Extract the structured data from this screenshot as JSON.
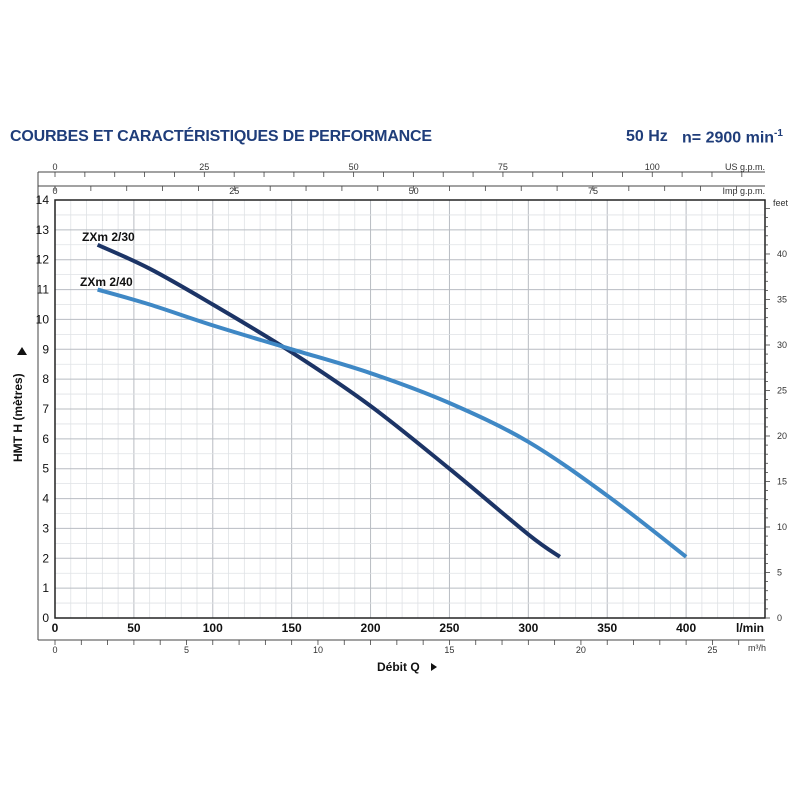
{
  "header": {
    "title": "COURBES ET CARACTÉRISTIQUES DE PERFORMANCE",
    "frequency": "50 Hz",
    "speed": "n= 2900 min",
    "speed_exp": "-1"
  },
  "chart_data": {
    "type": "line",
    "title": "COURBES ET CARACTÉRISTIQUES DE PERFORMANCE",
    "ylabel": "HMT H (mètres)",
    "xlabel": "Débit Q",
    "x_unit": "l/min",
    "x_unit_m3h": "m³/h",
    "us_unit": "US g.p.m.",
    "imp_unit": "Imp g.p.m.",
    "feet_unit": "feet",
    "xlim": [
      0,
      450
    ],
    "ylim": [
      0,
      14
    ],
    "grid": true,
    "x_ticks": [
      "0",
      "50",
      "100",
      "150",
      "200",
      "250",
      "300",
      "350",
      "400"
    ],
    "y_ticks": [
      "0",
      "1",
      "2",
      "3",
      "4",
      "5",
      "6",
      "7",
      "8",
      "9",
      "10",
      "11",
      "12",
      "13",
      "14"
    ],
    "m3h_ticks": [
      "0",
      "5",
      "10",
      "15",
      "20",
      "25"
    ],
    "us_gpm_ticks": [
      "0",
      "25",
      "50",
      "75",
      "100"
    ],
    "imp_gpm_ticks": [
      "0",
      "25",
      "50",
      "75"
    ],
    "feet_ticks": [
      "0",
      "5",
      "10",
      "15",
      "20",
      "25",
      "30",
      "35",
      "40"
    ],
    "series": [
      {
        "name": "ZXm 2/30",
        "color": "#1c3466",
        "x": [
          27,
          60,
          100,
          150,
          200,
          250,
          300,
          320
        ],
        "y": [
          12.5,
          11.7,
          10.5,
          8.9,
          7.1,
          5.0,
          2.8,
          2.05
        ]
      },
      {
        "name": "ZXm 2/40",
        "color": "#3f88c5",
        "x": [
          27,
          60,
          100,
          150,
          200,
          250,
          300,
          350,
          400
        ],
        "y": [
          11.0,
          10.5,
          9.8,
          9.0,
          8.2,
          7.2,
          5.9,
          4.1,
          2.05
        ]
      }
    ]
  }
}
